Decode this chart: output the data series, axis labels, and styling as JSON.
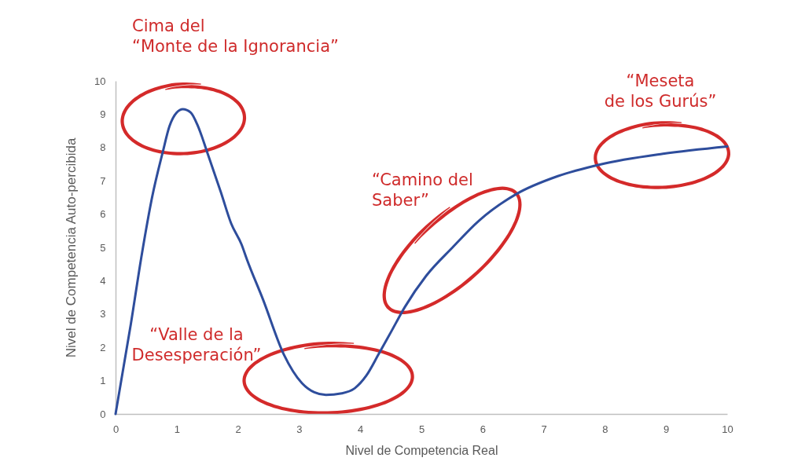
{
  "chart_data": {
    "type": "line",
    "xlabel": "Nivel de Competencia Real",
    "ylabel": "Nivel de Competencia Auto-percibida",
    "x": [
      0,
      0.25,
      0.43,
      0.6,
      0.77,
      0.88,
      1.0,
      1.1,
      1.23,
      1.35,
      1.5,
      1.72,
      1.89,
      2.06,
      2.15,
      2.41,
      2.75,
      3.05,
      3.25,
      3.44,
      3.7,
      3.91,
      4.1,
      4.3,
      4.5,
      4.73,
      5.08,
      5.51,
      5.94,
      6.54,
      7.23,
      7.92,
      8.95,
      10
    ],
    "series": [
      {
        "color": "#2e4d9c",
        "values": [
          0,
          2.7,
          4.8,
          6.53,
          7.85,
          8.63,
          9.05,
          9.15,
          9.05,
          8.63,
          7.85,
          6.67,
          5.72,
          5.09,
          4.63,
          3.44,
          1.79,
          0.92,
          0.65,
          0.57,
          0.62,
          0.77,
          1.15,
          1.79,
          2.45,
          3.21,
          4.15,
          5.0,
          5.8,
          6.59,
          7.14,
          7.49,
          7.81,
          8.03
        ]
      }
    ],
    "xlim": [
      0,
      10
    ],
    "ylim": [
      0,
      10
    ],
    "xticks": [
      0,
      1,
      2,
      3,
      4,
      5,
      6,
      7,
      8,
      9,
      10
    ],
    "yticks": [
      0,
      1,
      2,
      3,
      4,
      5,
      6,
      7,
      8,
      9,
      10
    ],
    "grid": false,
    "marker": "none",
    "annotations": [
      "Cima del\n“Monte de la Ignorancia”",
      "“Valle de la\nDesesperación”",
      "“Camino del\nSaber”",
      "“Meseta\nde los Gurús”"
    ]
  }
}
